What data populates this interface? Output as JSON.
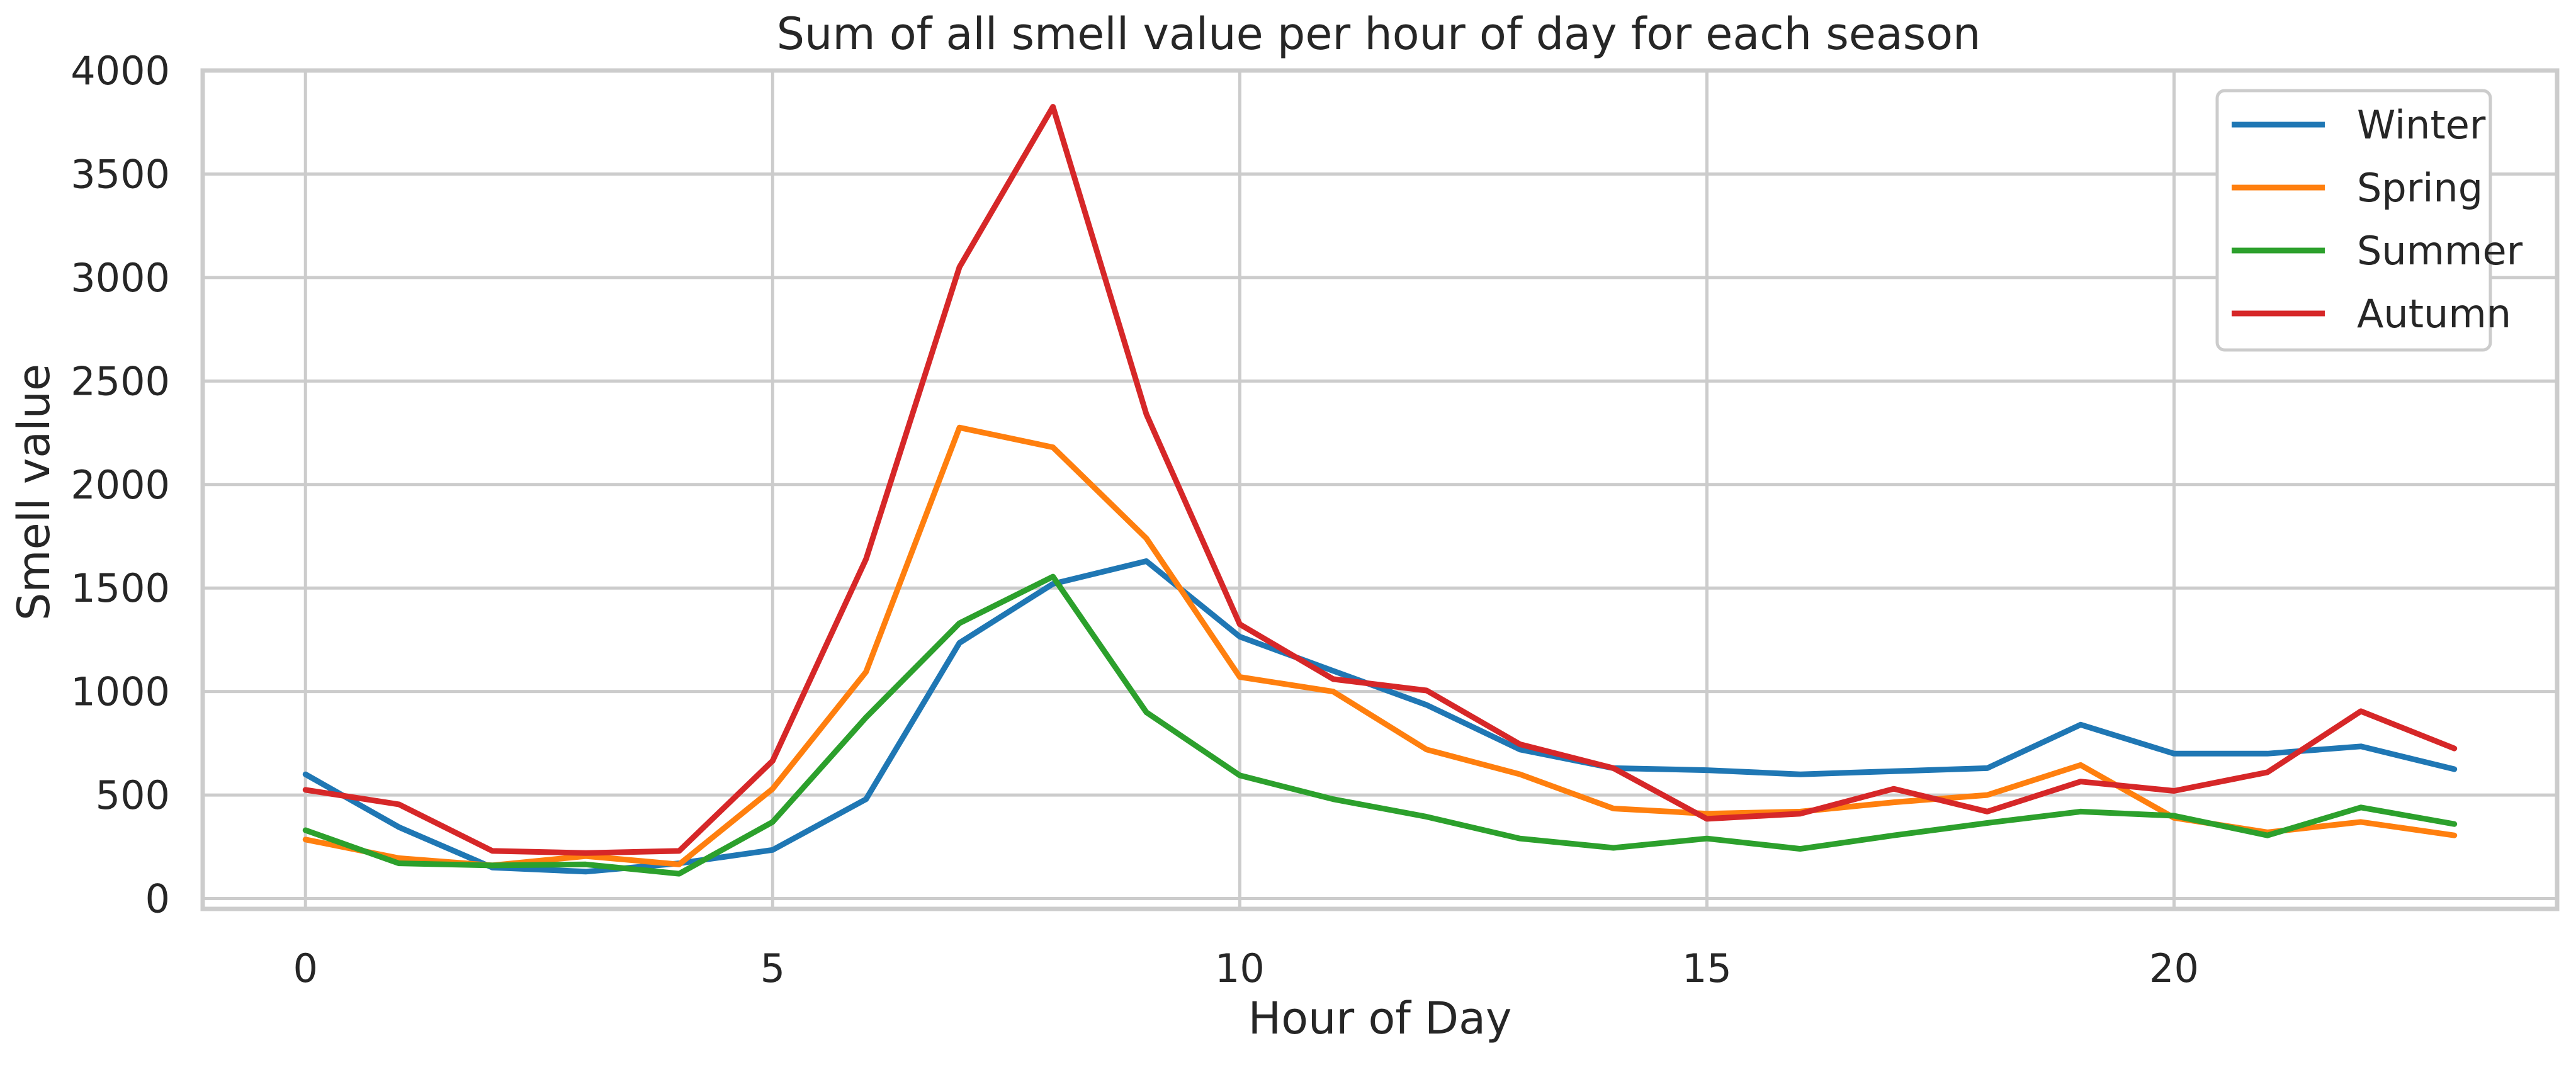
{
  "chart_data": {
    "type": "line",
    "title": "Sum of all smell value per hour of day for each season",
    "xlabel": "Hour of Day",
    "ylabel": "Smell value",
    "xlim": [
      -1.1,
      24.1
    ],
    "ylim": [
      -50,
      4000
    ],
    "x_ticks": [
      0,
      5,
      10,
      15,
      20
    ],
    "y_ticks": [
      0,
      500,
      1000,
      1500,
      2000,
      2500,
      3000,
      3500,
      4000
    ],
    "grid": true,
    "legend_position": "top-right",
    "x": [
      0,
      1,
      2,
      3,
      4,
      5,
      6,
      7,
      8,
      9,
      10,
      11,
      12,
      13,
      14,
      15,
      16,
      17,
      18,
      19,
      20,
      21,
      22,
      23
    ],
    "series": [
      {
        "name": "Winter",
        "color": "#1f77b4",
        "values": [
          600,
          345,
          150,
          130,
          170,
          235,
          480,
          1235,
          1520,
          1630,
          1265,
          1100,
          935,
          720,
          630,
          620,
          600,
          615,
          630,
          840,
          700,
          700,
          735,
          625
        ]
      },
      {
        "name": "Spring",
        "color": "#ff7f0e",
        "values": [
          285,
          195,
          160,
          205,
          165,
          530,
          1095,
          2275,
          2180,
          1740,
          1070,
          1000,
          720,
          600,
          435,
          410,
          420,
          465,
          500,
          645,
          390,
          320,
          370,
          305
        ]
      },
      {
        "name": "Summer",
        "color": "#2ca02c",
        "values": [
          330,
          170,
          160,
          165,
          120,
          370,
          875,
          1330,
          1555,
          900,
          595,
          480,
          395,
          290,
          245,
          290,
          240,
          305,
          365,
          420,
          400,
          305,
          440,
          360
        ]
      },
      {
        "name": "Autumn",
        "color": "#d62728",
        "values": [
          525,
          455,
          230,
          220,
          230,
          665,
          1640,
          3050,
          3825,
          2340,
          1325,
          1060,
          1005,
          745,
          630,
          385,
          410,
          530,
          420,
          565,
          520,
          610,
          905,
          725
        ]
      }
    ]
  }
}
